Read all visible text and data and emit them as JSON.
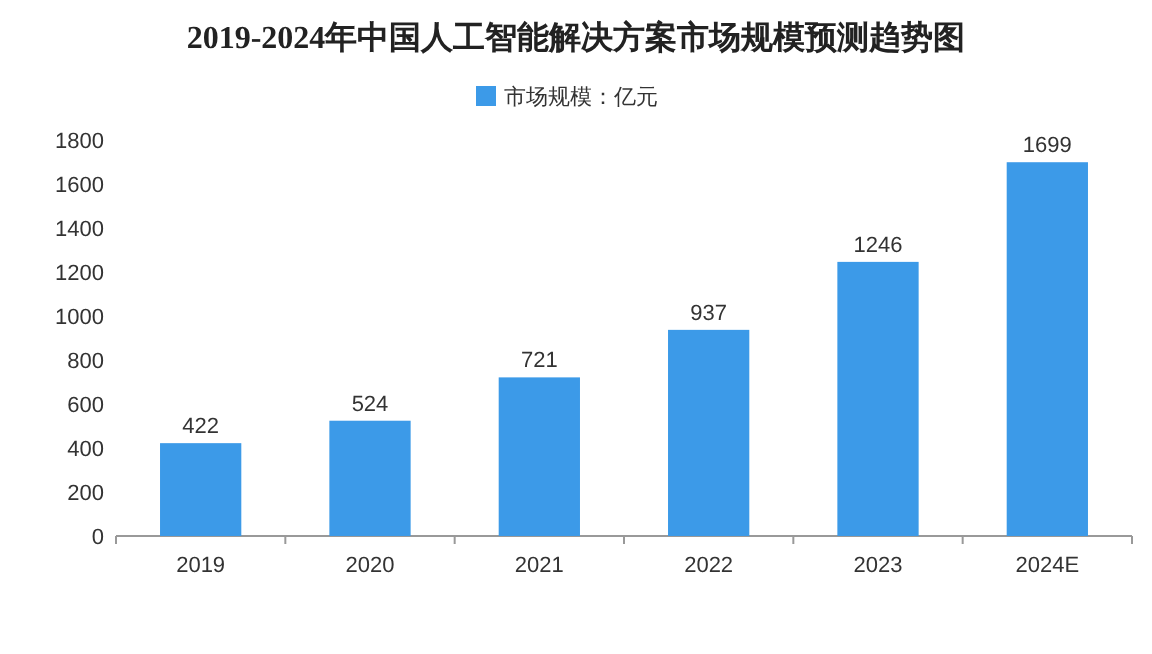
{
  "chart_data": {
    "type": "bar",
    "title": "2019-2024年中国人工智能解决方案市场规模预测趋势图",
    "categories": [
      "2019",
      "2020",
      "2021",
      "2022",
      "2023",
      "2024E"
    ],
    "series": [
      {
        "name": "市场规模：亿元",
        "color": "#3c9ae8",
        "values": [
          422,
          524,
          721,
          937,
          1246,
          1699
        ]
      }
    ],
    "ylim": [
      0,
      1800
    ],
    "yticks": [
      0,
      200,
      400,
      600,
      800,
      1000,
      1200,
      1400,
      1600,
      1800
    ],
    "data_labels": true,
    "legend": "top"
  }
}
